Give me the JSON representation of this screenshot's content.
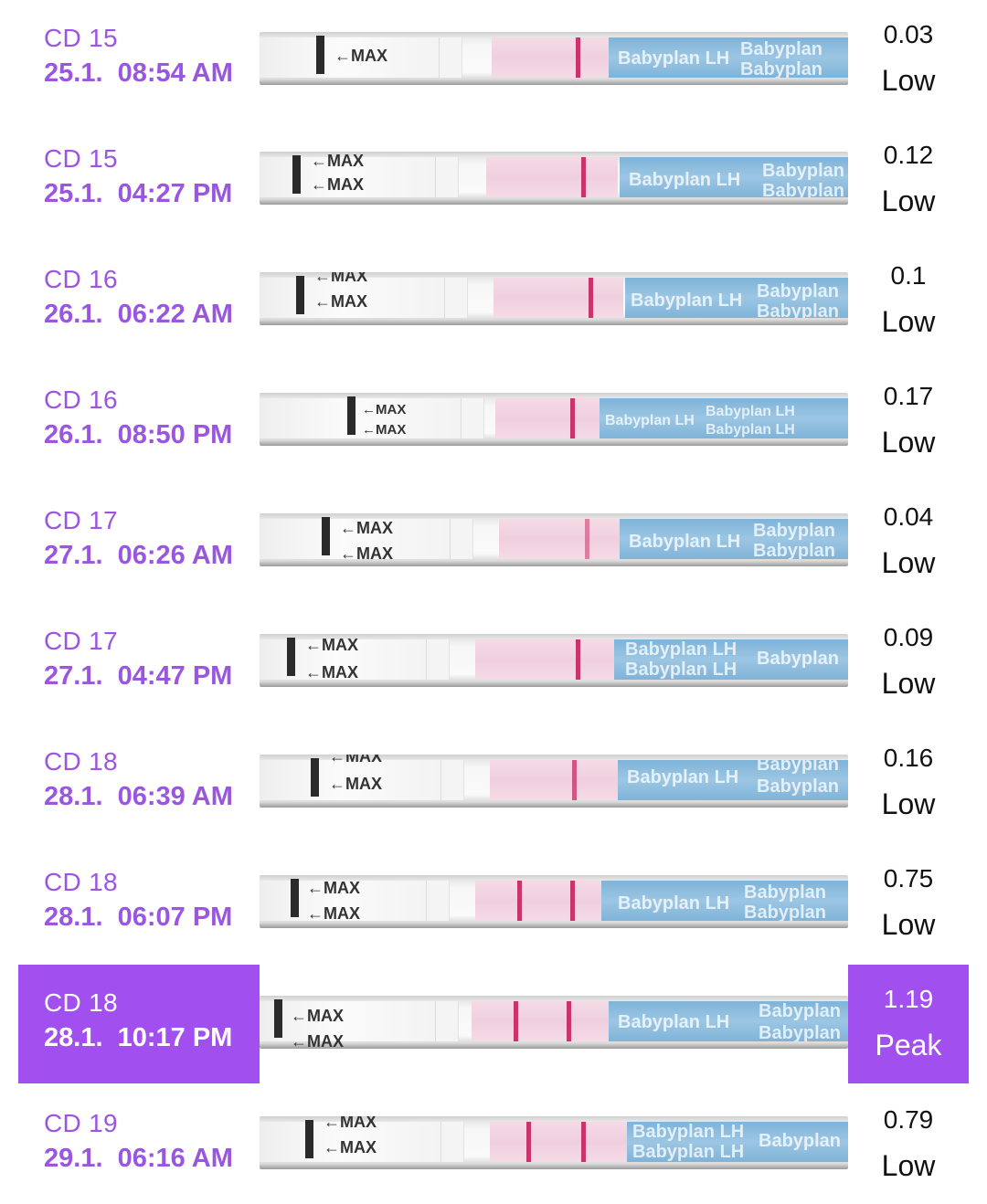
{
  "screen": {
    "background": "#ffffff",
    "accent": "#a24ff0",
    "date_color": "#9a56e0"
  },
  "strip_text": {
    "max_label": "←MAX",
    "brand": "Babyplan LH",
    "brand_short": "Babyplan"
  },
  "entries": [
    {
      "cd": "CD 15",
      "datetime": "25.1.  08:54 AM",
      "value": "0.03",
      "level": "Low",
      "highlighted": false
    },
    {
      "cd": "CD 15",
      "datetime": "25.1.  04:27 PM",
      "value": "0.12",
      "level": "Low",
      "highlighted": false
    },
    {
      "cd": "CD 16",
      "datetime": "26.1.  06:22 AM",
      "value": "0.1",
      "level": "Low",
      "highlighted": false
    },
    {
      "cd": "CD 16",
      "datetime": "26.1.  08:50 PM",
      "value": "0.17",
      "level": "Low",
      "highlighted": false
    },
    {
      "cd": "CD 17",
      "datetime": "27.1.  06:26 AM",
      "value": "0.04",
      "level": "Low",
      "highlighted": false
    },
    {
      "cd": "CD 17",
      "datetime": "27.1.  04:47 PM",
      "value": "0.09",
      "level": "Low",
      "highlighted": false
    },
    {
      "cd": "CD 18",
      "datetime": "28.1.  06:39 AM",
      "value": "0.16",
      "level": "Low",
      "highlighted": false
    },
    {
      "cd": "CD 18",
      "datetime": "28.1.  06:07 PM",
      "value": "0.75",
      "level": "Low",
      "highlighted": false
    },
    {
      "cd": "CD 18",
      "datetime": "28.1.  10:17 PM",
      "value": "1.19",
      "level": "Peak",
      "highlighted": true
    },
    {
      "cd": "CD 19",
      "datetime": "29.1.  06:16 AM",
      "value": "0.79",
      "level": "Low",
      "highlighted": false
    }
  ]
}
